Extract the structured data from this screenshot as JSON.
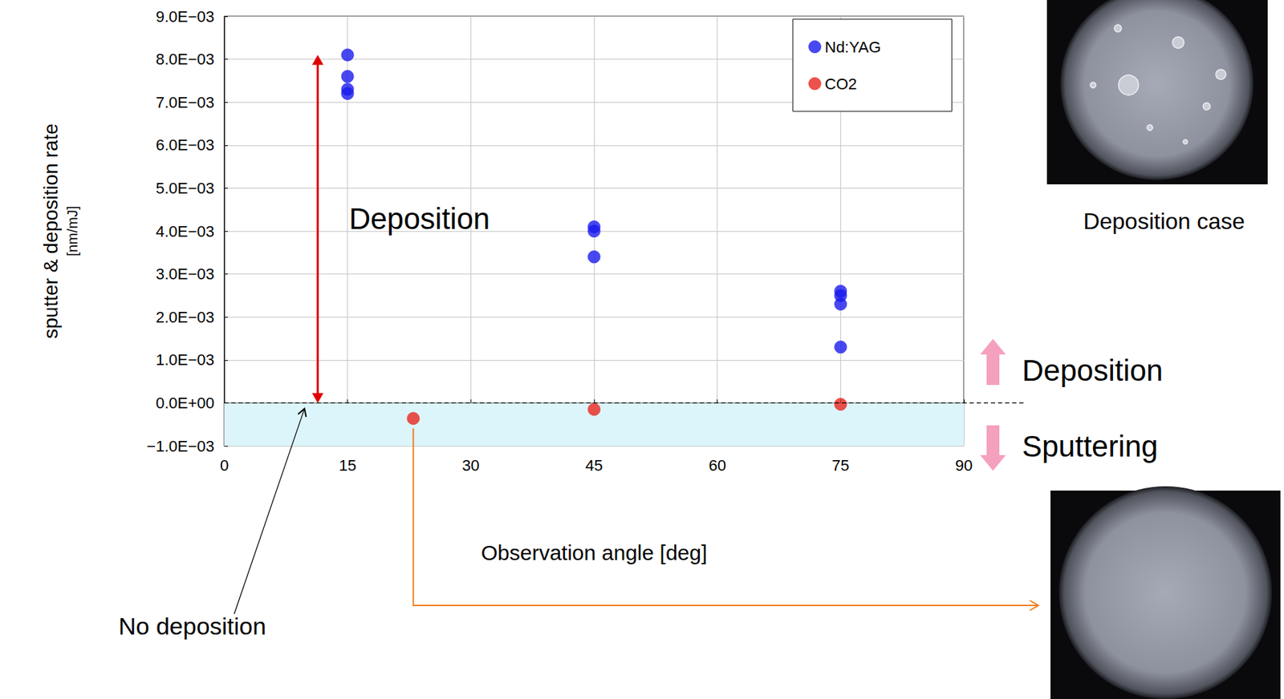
{
  "chart_data": {
    "type": "scatter",
    "xlabel": "Observation angle [deg]",
    "ylabel": [
      "sputter & deposition rate",
      "[nm/mJ]"
    ],
    "series": [
      {
        "name": "Nd:YAG",
        "color": "#1a1aee",
        "marker": "circle",
        "x": [
          15,
          15,
          15,
          15,
          45,
          45,
          45,
          75,
          75,
          75,
          75
        ],
        "values": [
          0.0081,
          0.0076,
          0.0073,
          0.0072,
          0.0041,
          0.004,
          0.0034,
          0.0026,
          0.0025,
          0.0023,
          0.0013
        ]
      },
      {
        "name": "CO2",
        "color": "#e8261e",
        "marker": "circle",
        "x": [
          23,
          45,
          75
        ],
        "values": [
          -0.00036,
          -0.00015,
          -3e-05
        ]
      }
    ],
    "xlim": [
      0,
      90
    ],
    "xticks": [
      0,
      15,
      30,
      45,
      60,
      75,
      90
    ],
    "ylim": [
      -0.001,
      0.009
    ],
    "yticks": [
      {
        "value": -0.001,
        "label": "−1.0E−03"
      },
      {
        "value": 0,
        "label": "0.0E+00"
      },
      {
        "value": 0.001,
        "label": "1.0E−03"
      },
      {
        "value": 0.002,
        "label": "2.0E−03"
      },
      {
        "value": 0.003,
        "label": "3.0E−03"
      },
      {
        "value": 0.004,
        "label": "4.0E−03"
      },
      {
        "value": 0.005,
        "label": "5.0E−03"
      },
      {
        "value": 0.006,
        "label": "6.0E−03"
      },
      {
        "value": 0.007,
        "label": "7.0E−03"
      },
      {
        "value": 0.008,
        "label": "8.0E−03"
      },
      {
        "value": 0.009,
        "label": "9.0E−03"
      }
    ],
    "grid": true,
    "legend": "upper right",
    "baseline": 0,
    "annotations": {
      "plot": "Deposition",
      "baseline": "No deposition",
      "up": "Deposition",
      "down": "Sputtering",
      "photo": "Deposition case"
    }
  }
}
